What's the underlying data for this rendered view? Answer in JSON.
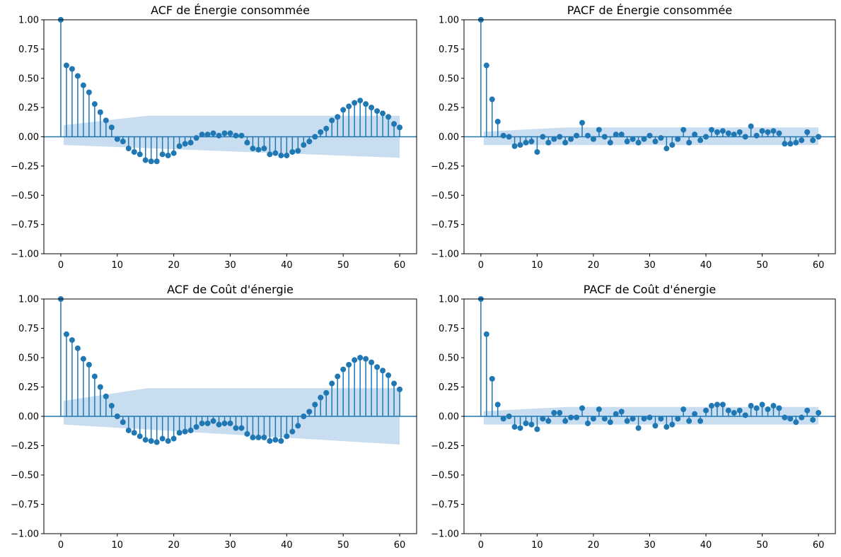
{
  "colors": {
    "stem": "#1f77b4",
    "band": "#c6dbef",
    "axis": "#000000"
  },
  "chart_data": [
    {
      "type": "stem",
      "title": "ACF de Énergie consommée",
      "xlim": [
        -3,
        63
      ],
      "ylim": [
        -1.0,
        1.0
      ],
      "xticks": [
        0,
        10,
        20,
        30,
        40,
        50,
        60
      ],
      "yticks": [
        1.0,
        0.75,
        0.5,
        0.25,
        0.0,
        -0.25,
        -0.5,
        -0.75,
        -1.0
      ],
      "x_tick_labels": [
        "0",
        "10",
        "20",
        "30",
        "40",
        "50",
        "60"
      ],
      "y_tick_labels": [
        "1.00",
        "0.75",
        "0.50",
        "0.25",
        "0.00",
        "−0.25",
        "−0.50",
        "−0.75",
        "−1.00"
      ],
      "lags": [
        0,
        1,
        2,
        3,
        4,
        5,
        6,
        7,
        8,
        9,
        10,
        11,
        12,
        13,
        14,
        15,
        16,
        17,
        18,
        19,
        20,
        21,
        22,
        23,
        24,
        25,
        26,
        27,
        28,
        29,
        30,
        31,
        32,
        33,
        34,
        35,
        36,
        37,
        38,
        39,
        40,
        41,
        42,
        43,
        44,
        45,
        46,
        47,
        48,
        49,
        50,
        51,
        52,
        53,
        54,
        55,
        56,
        57,
        58,
        59,
        60
      ],
      "values": [
        1.0,
        0.61,
        0.58,
        0.52,
        0.44,
        0.38,
        0.28,
        0.21,
        0.14,
        0.08,
        -0.02,
        -0.04,
        -0.1,
        -0.13,
        -0.15,
        -0.2,
        -0.21,
        -0.21,
        -0.15,
        -0.16,
        -0.14,
        -0.08,
        -0.06,
        -0.05,
        -0.01,
        0.02,
        0.02,
        0.03,
        0.01,
        0.03,
        0.03,
        0.01,
        0.01,
        -0.05,
        -0.1,
        -0.11,
        -0.1,
        -0.15,
        -0.14,
        -0.16,
        -0.16,
        -0.13,
        -0.12,
        -0.07,
        -0.04,
        0.0,
        0.04,
        0.07,
        0.14,
        0.17,
        0.23,
        0.26,
        0.29,
        0.31,
        0.28,
        0.25,
        0.22,
        0.2,
        0.17,
        0.11,
        0.08
      ],
      "confidence_band": {
        "start_lag": 0.5,
        "end_lag": 60,
        "lower": -0.07,
        "upper": 0.18
      }
    },
    {
      "type": "stem",
      "title": "PACF de Énergie consommée",
      "xlim": [
        -3,
        63
      ],
      "ylim": [
        -1.0,
        1.0
      ],
      "xticks": [
        0,
        10,
        20,
        30,
        40,
        50,
        60
      ],
      "yticks": [
        1.0,
        0.75,
        0.5,
        0.25,
        0.0,
        -0.25,
        -0.5,
        -0.75,
        -1.0
      ],
      "x_tick_labels": [
        "0",
        "10",
        "20",
        "30",
        "40",
        "50",
        "60"
      ],
      "y_tick_labels": [
        "1.00",
        "0.75",
        "0.50",
        "0.25",
        "0.00",
        "−0.25",
        "−0.50",
        "−0.75",
        "−1.00"
      ],
      "lags": [
        0,
        1,
        2,
        3,
        4,
        5,
        6,
        7,
        8,
        9,
        10,
        11,
        12,
        13,
        14,
        15,
        16,
        17,
        18,
        19,
        20,
        21,
        22,
        23,
        24,
        25,
        26,
        27,
        28,
        29,
        30,
        31,
        32,
        33,
        34,
        35,
        36,
        37,
        38,
        39,
        40,
        41,
        42,
        43,
        44,
        45,
        46,
        47,
        48,
        49,
        50,
        51,
        52,
        53,
        54,
        55,
        56,
        57,
        58,
        59,
        60
      ],
      "values": [
        1.0,
        0.61,
        0.32,
        0.13,
        0.01,
        0.0,
        -0.08,
        -0.07,
        -0.05,
        -0.04,
        -0.13,
        0.0,
        -0.05,
        -0.02,
        0.0,
        -0.05,
        -0.02,
        0.01,
        0.12,
        0.01,
        -0.02,
        0.06,
        0.0,
        -0.05,
        0.02,
        0.02,
        -0.04,
        -0.02,
        -0.05,
        -0.02,
        0.01,
        -0.04,
        -0.01,
        -0.1,
        -0.07,
        -0.02,
        0.06,
        -0.05,
        0.02,
        -0.03,
        0.0,
        0.06,
        0.04,
        0.05,
        0.03,
        0.02,
        0.04,
        0.0,
        0.09,
        0.01,
        0.05,
        0.04,
        0.05,
        0.03,
        -0.06,
        -0.06,
        -0.05,
        -0.03,
        0.04,
        -0.03,
        0.0
      ],
      "confidence_band": {
        "start_lag": 0.5,
        "end_lag": 60,
        "lower": -0.07,
        "upper": 0.08
      }
    },
    {
      "type": "stem",
      "title": "ACF de Coût d'énergie",
      "xlim": [
        -3,
        63
      ],
      "ylim": [
        -1.0,
        1.0
      ],
      "xticks": [
        0,
        10,
        20,
        30,
        40,
        50,
        60
      ],
      "yticks": [
        1.0,
        0.75,
        0.5,
        0.25,
        0.0,
        -0.25,
        -0.5,
        -0.75,
        -1.0
      ],
      "x_tick_labels": [
        "0",
        "10",
        "20",
        "30",
        "40",
        "50",
        "60"
      ],
      "y_tick_labels": [
        "1.00",
        "0.75",
        "0.50",
        "0.25",
        "0.00",
        "−0.25",
        "−0.50",
        "−0.75",
        "−1.00"
      ],
      "lags": [
        0,
        1,
        2,
        3,
        4,
        5,
        6,
        7,
        8,
        9,
        10,
        11,
        12,
        13,
        14,
        15,
        16,
        17,
        18,
        19,
        20,
        21,
        22,
        23,
        24,
        25,
        26,
        27,
        28,
        29,
        30,
        31,
        32,
        33,
        34,
        35,
        36,
        37,
        38,
        39,
        40,
        41,
        42,
        43,
        44,
        45,
        46,
        47,
        48,
        49,
        50,
        51,
        52,
        53,
        54,
        55,
        56,
        57,
        58,
        59,
        60
      ],
      "values": [
        1.0,
        0.7,
        0.65,
        0.58,
        0.49,
        0.44,
        0.34,
        0.25,
        0.17,
        0.09,
        0.0,
        -0.05,
        -0.12,
        -0.14,
        -0.17,
        -0.2,
        -0.21,
        -0.22,
        -0.19,
        -0.21,
        -0.19,
        -0.14,
        -0.13,
        -0.12,
        -0.09,
        -0.06,
        -0.06,
        -0.04,
        -0.07,
        -0.06,
        -0.06,
        -0.1,
        -0.1,
        -0.15,
        -0.18,
        -0.18,
        -0.18,
        -0.21,
        -0.2,
        -0.21,
        -0.17,
        -0.13,
        -0.08,
        0.0,
        0.04,
        0.1,
        0.16,
        0.2,
        0.28,
        0.34,
        0.4,
        0.44,
        0.48,
        0.5,
        0.49,
        0.46,
        0.42,
        0.39,
        0.35,
        0.28,
        0.23
      ],
      "confidence_band": {
        "start_lag": 0.5,
        "end_lag": 60,
        "lower": -0.07,
        "upper": 0.24
      }
    },
    {
      "type": "stem",
      "title": "PACF de Coût d'énergie",
      "xlim": [
        -3,
        63
      ],
      "ylim": [
        -1.0,
        1.0
      ],
      "xticks": [
        0,
        10,
        20,
        30,
        40,
        50,
        60
      ],
      "yticks": [
        1.0,
        0.75,
        0.5,
        0.25,
        0.0,
        -0.25,
        -0.5,
        -0.75,
        -1.0
      ],
      "x_tick_labels": [
        "0",
        "10",
        "20",
        "30",
        "40",
        "50",
        "60"
      ],
      "y_tick_labels": [
        "1.00",
        "0.75",
        "0.50",
        "0.25",
        "0.00",
        "−0.25",
        "−0.50",
        "−0.75",
        "−1.00"
      ],
      "lags": [
        0,
        1,
        2,
        3,
        4,
        5,
        6,
        7,
        8,
        9,
        10,
        11,
        12,
        13,
        14,
        15,
        16,
        17,
        18,
        19,
        20,
        21,
        22,
        23,
        24,
        25,
        26,
        27,
        28,
        29,
        30,
        31,
        32,
        33,
        34,
        35,
        36,
        37,
        38,
        39,
        40,
        41,
        42,
        43,
        44,
        45,
        46,
        47,
        48,
        49,
        50,
        51,
        52,
        53,
        54,
        55,
        56,
        57,
        58,
        59,
        60
      ],
      "values": [
        1.0,
        0.7,
        0.32,
        0.1,
        -0.02,
        0.0,
        -0.09,
        -0.1,
        -0.06,
        -0.07,
        -0.11,
        -0.02,
        -0.04,
        0.03,
        0.03,
        -0.04,
        -0.01,
        -0.01,
        0.07,
        -0.06,
        -0.02,
        0.06,
        -0.02,
        -0.05,
        0.02,
        0.04,
        -0.04,
        -0.02,
        -0.1,
        -0.02,
        -0.01,
        -0.08,
        -0.02,
        -0.09,
        -0.07,
        -0.02,
        0.06,
        -0.04,
        0.02,
        -0.04,
        0.05,
        0.09,
        0.1,
        0.1,
        0.05,
        0.03,
        0.05,
        0.01,
        0.09,
        0.07,
        0.1,
        0.06,
        0.09,
        0.07,
        -0.01,
        -0.02,
        -0.05,
        -0.01,
        0.05,
        -0.03,
        0.03
      ],
      "confidence_band": {
        "start_lag": 0.5,
        "end_lag": 60,
        "lower": -0.07,
        "upper": 0.08
      }
    }
  ]
}
